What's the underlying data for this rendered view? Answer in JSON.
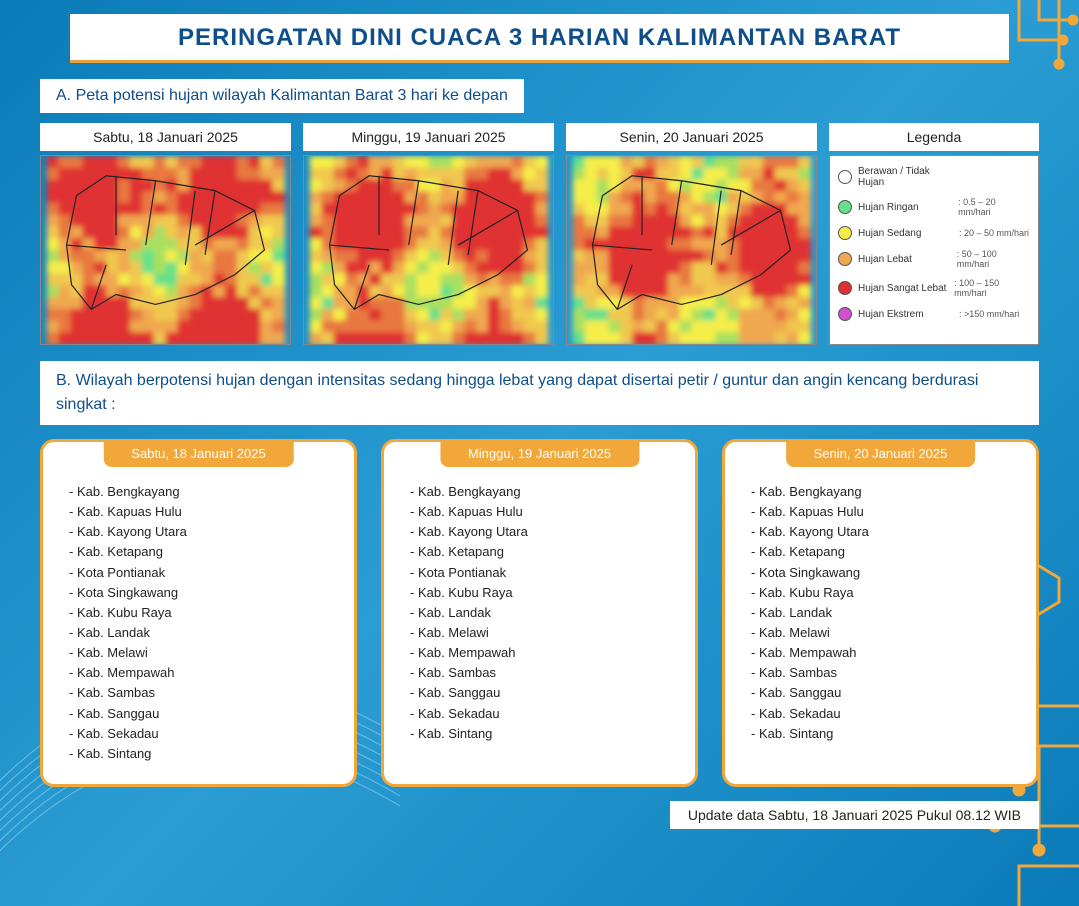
{
  "title": "PERINGATAN DINI CUACA 3 HARIAN KALIMANTAN BARAT",
  "colors": {
    "title_text": "#0e4e8a",
    "title_underline": "#e8a23a",
    "card_border": "#f2a73a",
    "card_tab_bg": "#f2a73a",
    "bg_grad_a": "#0a7bb8",
    "bg_grad_b": "#2b9dd4"
  },
  "section_a_label": "A. Peta potensi hujan wilayah Kalimantan Barat 3 hari ke depan",
  "maps": [
    {
      "header": "Sabtu, 18 Januari 2025"
    },
    {
      "header": "Minggu, 19 Januari 2025"
    },
    {
      "header": "Senin, 20 Januari 2025"
    }
  ],
  "legend": {
    "header": "Legenda",
    "items": [
      {
        "label": "Berawan / Tidak Hujan",
        "range": "",
        "color": "#ffffff"
      },
      {
        "label": "Hujan Ringan",
        "range": ": 0.5 – 20 mm/hari",
        "color": "#66e08a"
      },
      {
        "label": "Hujan Sedang",
        "range": ": 20 – 50 mm/hari",
        "color": "#f5ee4a"
      },
      {
        "label": "Hujan Lebat",
        "range": ": 50 – 100 mm/hari",
        "color": "#f0a850"
      },
      {
        "label": "Hujan Sangat Lebat",
        "range": ": 100 – 150 mm/hari",
        "color": "#e03030"
      },
      {
        "label": "Hujan Ekstrem",
        "range": ": >150 mm/hari",
        "color": "#d050d0"
      }
    ]
  },
  "section_b_label": "B. Wilayah berpotensi hujan dengan intensitas sedang hingga lebat yang dapat disertai petir / guntur dan angin kencang berdurasi singkat :",
  "cards": [
    {
      "tab": "Sabtu, 18 Januari 2025",
      "items": [
        "Kab. Bengkayang",
        "Kab. Kapuas Hulu",
        "Kab. Kayong Utara",
        "Kab. Ketapang",
        "Kota Pontianak",
        "Kota Singkawang",
        "Kab. Kubu Raya",
        "Kab. Landak",
        "Kab. Melawi",
        "Kab. Mempawah",
        "Kab. Sambas",
        "Kab. Sanggau",
        "Kab. Sekadau",
        "Kab. Sintang"
      ]
    },
    {
      "tab": "Minggu, 19 Januari 2025",
      "items": [
        "Kab. Bengkayang",
        "Kab. Kapuas Hulu",
        "Kab. Kayong Utara",
        "Kab. Ketapang",
        "Kota Pontianak",
        "Kab. Kubu Raya",
        "Kab. Landak",
        "Kab. Melawi",
        "Kab. Mempawah",
        "Kab. Sambas",
        "Kab. Sanggau",
        "Kab. Sekadau",
        "Kab. Sintang"
      ]
    },
    {
      "tab": "Senin, 20 Januari 2025",
      "items": [
        "Kab. Bengkayang",
        "Kab. Kapuas Hulu",
        "Kab. Kayong Utara",
        "Kab. Ketapang",
        "Kota Singkawang",
        "Kab. Kubu Raya",
        "Kab. Landak",
        "Kab. Melawi",
        "Kab. Mempawah",
        "Kab. Sambas",
        "Kab. Sanggau",
        "Kab. Sekadau",
        "Kab. Sintang"
      ]
    }
  ],
  "update_note": "Update data Sabtu, 18 Januari 2025 Pukul 08.12 WIB",
  "heatmap_palette": [
    "#66e08a",
    "#a8e060",
    "#f5ee4a",
    "#f0c850",
    "#f0a850",
    "#e87840",
    "#e03030"
  ]
}
